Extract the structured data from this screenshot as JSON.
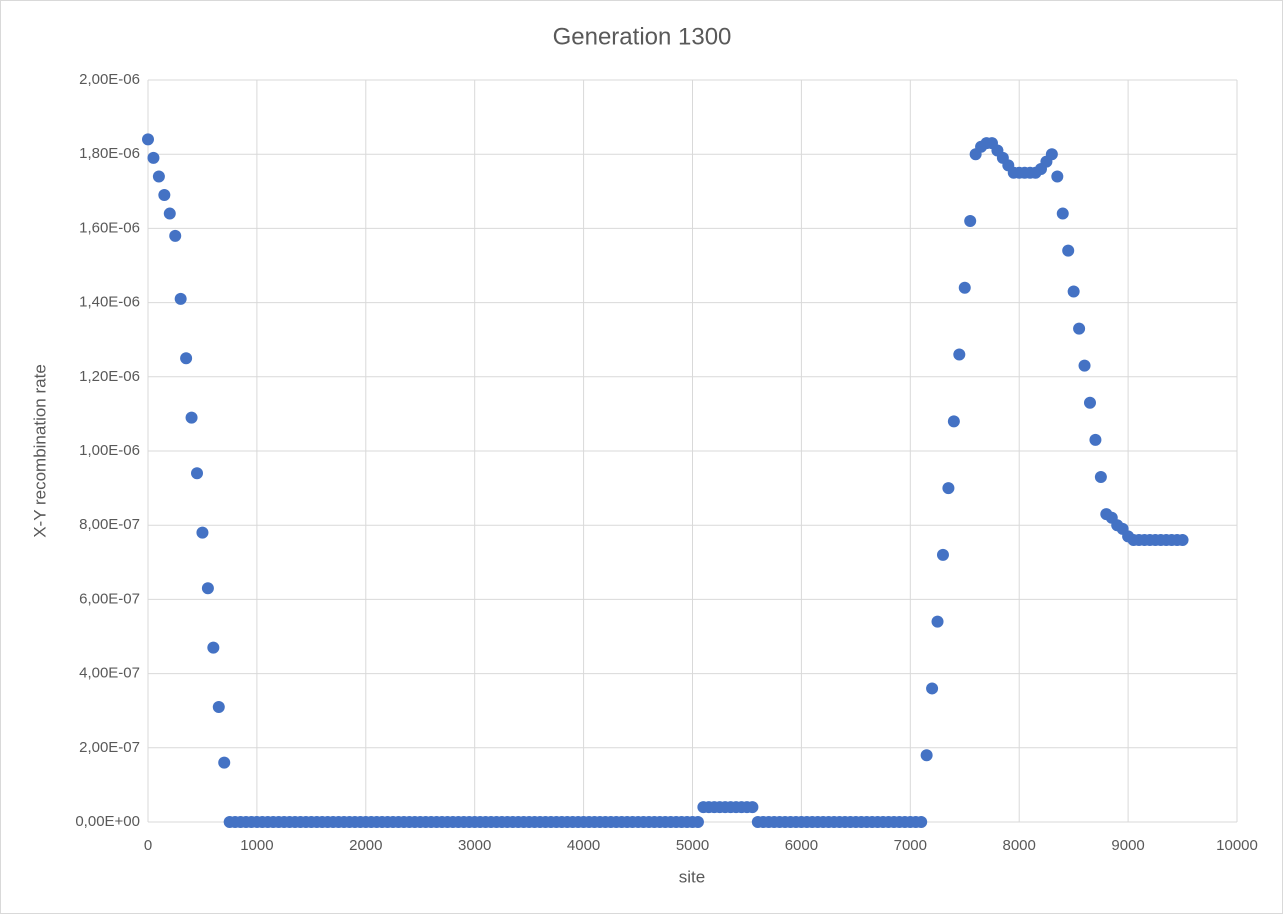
{
  "chart_data": {
    "type": "scatter",
    "title": "Generation 1300",
    "x_label": "site",
    "y_label": "X-Y recombination rate",
    "grid": true,
    "xlim": [
      0,
      10000
    ],
    "xticks": [
      0,
      1000,
      2000,
      3000,
      4000,
      5000,
      6000,
      7000,
      8000,
      9000,
      10000
    ],
    "ylim": [
      0,
      2e-06
    ],
    "yticks": [
      {
        "value": 0,
        "label": "0,00E+00"
      },
      {
        "value": 2e-07,
        "label": "2,00E-07"
      },
      {
        "value": 4e-07,
        "label": "4,00E-07"
      },
      {
        "value": 6e-07,
        "label": "6,00E-07"
      },
      {
        "value": 8e-07,
        "label": "8,00E-07"
      },
      {
        "value": 1e-06,
        "label": "1,00E-06"
      },
      {
        "value": 1.2e-06,
        "label": "1,20E-06"
      },
      {
        "value": 1.4e-06,
        "label": "1,40E-06"
      },
      {
        "value": 1.6e-06,
        "label": "1,60E-06"
      },
      {
        "value": 1.8e-06,
        "label": "1,80E-06"
      },
      {
        "value": 2e-06,
        "label": "2,00E-06"
      }
    ],
    "series": [
      {
        "color": "#4472c4",
        "x": [
          0,
          50,
          100,
          150,
          200,
          250,
          300,
          350,
          400,
          450,
          500,
          550,
          600,
          650,
          700,
          750,
          800,
          850,
          900,
          950,
          1000,
          1050,
          1100,
          1150,
          1200,
          1250,
          1300,
          1350,
          1400,
          1450,
          1500,
          1550,
          1600,
          1650,
          1700,
          1750,
          1800,
          1850,
          1900,
          1950,
          2000,
          2050,
          2100,
          2150,
          2200,
          2250,
          2300,
          2350,
          2400,
          2450,
          2500,
          2550,
          2600,
          2650,
          2700,
          2750,
          2800,
          2850,
          2900,
          2950,
          3000,
          3050,
          3100,
          3150,
          3200,
          3250,
          3300,
          3350,
          3400,
          3450,
          3500,
          3550,
          3600,
          3650,
          3700,
          3750,
          3800,
          3850,
          3900,
          3950,
          4000,
          4050,
          4100,
          4150,
          4200,
          4250,
          4300,
          4350,
          4400,
          4450,
          4500,
          4550,
          4600,
          4650,
          4700,
          4750,
          4800,
          4850,
          4900,
          4950,
          5000,
          5050,
          5100,
          5150,
          5200,
          5250,
          5300,
          5350,
          5400,
          5450,
          5500,
          5550,
          5600,
          5650,
          5700,
          5750,
          5800,
          5850,
          5900,
          5950,
          6000,
          6050,
          6100,
          6150,
          6200,
          6250,
          6300,
          6350,
          6400,
          6450,
          6500,
          6550,
          6600,
          6650,
          6700,
          6750,
          6800,
          6850,
          6900,
          6950,
          7000,
          7050,
          7100,
          7150,
          7200,
          7250,
          7300,
          7350,
          7400,
          7450,
          7500,
          7550,
          7600,
          7650,
          7700,
          7750,
          7800,
          7850,
          7900,
          7950,
          8000,
          8050,
          8100,
          8150,
          8200,
          8250,
          8300,
          8350,
          8400,
          8450,
          8500,
          8550,
          8600,
          8650,
          8700,
          8750,
          8800,
          8850,
          8900,
          8950,
          9000,
          9050,
          9100,
          9150,
          9200,
          9250,
          9300,
          9350,
          9400,
          9450,
          9500
        ],
        "values": [
          1.84e-06,
          1.79e-06,
          1.74e-06,
          1.69e-06,
          1.64e-06,
          1.58e-06,
          1.41e-06,
          1.25e-06,
          1.09e-06,
          9.4e-07,
          7.8e-07,
          6.3e-07,
          4.7e-07,
          3.1e-07,
          1.6e-07,
          0,
          0,
          0,
          0,
          0,
          0,
          0,
          0,
          0,
          0,
          0,
          0,
          0,
          0,
          0,
          0,
          0,
          0,
          0,
          0,
          0,
          0,
          0,
          0,
          0,
          0,
          0,
          0,
          0,
          0,
          0,
          0,
          0,
          0,
          0,
          0,
          0,
          0,
          0,
          0,
          0,
          0,
          0,
          0,
          0,
          0,
          0,
          0,
          0,
          0,
          0,
          0,
          0,
          0,
          0,
          0,
          0,
          0,
          0,
          0,
          0,
          0,
          0,
          0,
          0,
          0,
          0,
          0,
          0,
          0,
          0,
          0,
          0,
          0,
          0,
          0,
          0,
          0,
          0,
          0,
          0,
          0,
          0,
          0,
          0,
          0,
          0,
          4e-08,
          4e-08,
          4e-08,
          4e-08,
          4e-08,
          4e-08,
          4e-08,
          4e-08,
          4e-08,
          4e-08,
          0,
          0,
          0,
          0,
          0,
          0,
          0,
          0,
          0,
          0,
          0,
          0,
          0,
          0,
          0,
          0,
          0,
          0,
          0,
          0,
          0,
          0,
          0,
          0,
          0,
          0,
          0,
          0,
          0,
          0,
          0,
          1.8e-07,
          3.6e-07,
          5.4e-07,
          7.2e-07,
          9e-07,
          1.08e-06,
          1.26e-06,
          1.44e-06,
          1.62e-06,
          1.8e-06,
          1.82e-06,
          1.83e-06,
          1.83e-06,
          1.81e-06,
          1.79e-06,
          1.77e-06,
          1.75e-06,
          1.75e-06,
          1.75e-06,
          1.75e-06,
          1.75e-06,
          1.76e-06,
          1.78e-06,
          1.8e-06,
          1.74e-06,
          1.64e-06,
          1.54e-06,
          1.43e-06,
          1.33e-06,
          1.23e-06,
          1.13e-06,
          1.03e-06,
          9.3e-07,
          8.3e-07,
          8.2e-07,
          8e-07,
          7.9e-07,
          7.7e-07,
          7.6e-07,
          7.6e-07,
          7.6e-07,
          7.6e-07,
          7.6e-07,
          7.6e-07,
          7.6e-07,
          7.6e-07,
          7.6e-07,
          7.6e-07
        ]
      }
    ]
  }
}
